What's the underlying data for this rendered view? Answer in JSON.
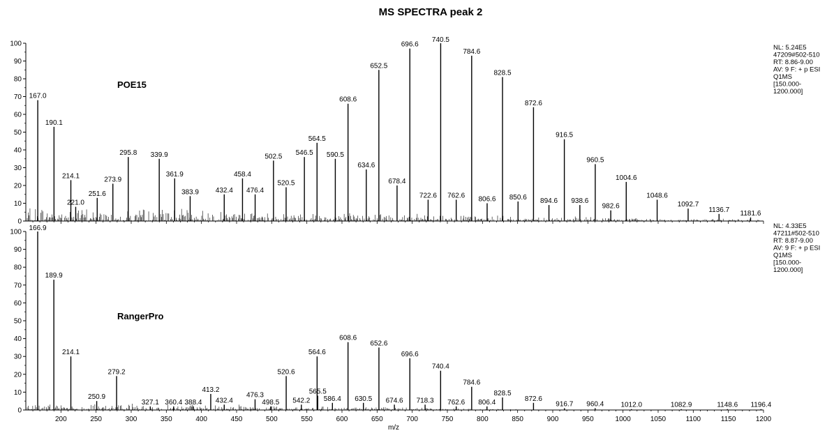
{
  "chart_data": {
    "type": "bar",
    "title": "MS SPECTRA peak 2",
    "xlabel": "m/z",
    "xlim": [
      150,
      1200
    ],
    "ylim": [
      0,
      100
    ],
    "x_ticks": [
      200,
      250,
      300,
      350,
      400,
      450,
      500,
      550,
      600,
      650,
      700,
      750,
      800,
      850,
      900,
      950,
      1000,
      1050,
      1100,
      1150,
      1200
    ],
    "y_ticks": [
      0,
      10,
      20,
      30,
      40,
      50,
      60,
      70,
      80,
      90,
      100
    ],
    "panels": [
      {
        "sample": "POE15",
        "info": [
          "NL: 5.24E5",
          "47209#502-510",
          "RT: 8.86-9.00",
          "AV: 9 F: + p ESI",
          "Q1MS",
          "[150.000-",
          "1200.000]"
        ],
        "peaks": [
          {
            "mz": 167.0,
            "rel": 68,
            "label": "167.0"
          },
          {
            "mz": 190.1,
            "rel": 53,
            "label": "190.1"
          },
          {
            "mz": 214.1,
            "rel": 23,
            "label": "214.1"
          },
          {
            "mz": 221.0,
            "rel": 8,
            "label": "221.0"
          },
          {
            "mz": 251.6,
            "rel": 13,
            "label": "251.6"
          },
          {
            "mz": 273.9,
            "rel": 21,
            "label": "273.9"
          },
          {
            "mz": 295.8,
            "rel": 36,
            "label": "295.8"
          },
          {
            "mz": 339.9,
            "rel": 35,
            "label": "339.9"
          },
          {
            "mz": 361.9,
            "rel": 24,
            "label": "361.9"
          },
          {
            "mz": 383.9,
            "rel": 14,
            "label": "383.9"
          },
          {
            "mz": 432.4,
            "rel": 15,
            "label": "432.4"
          },
          {
            "mz": 458.4,
            "rel": 24,
            "label": "458.4"
          },
          {
            "mz": 476.4,
            "rel": 15,
            "label": "476.4"
          },
          {
            "mz": 502.5,
            "rel": 34,
            "label": "502.5"
          },
          {
            "mz": 520.5,
            "rel": 19,
            "label": "520.5"
          },
          {
            "mz": 546.5,
            "rel": 36,
            "label": "546.5"
          },
          {
            "mz": 564.5,
            "rel": 44,
            "label": "564.5"
          },
          {
            "mz": 590.5,
            "rel": 35,
            "label": "590.5"
          },
          {
            "mz": 608.6,
            "rel": 66,
            "label": "608.6"
          },
          {
            "mz": 634.6,
            "rel": 29,
            "label": "634.6"
          },
          {
            "mz": 652.5,
            "rel": 85,
            "label": "652.5"
          },
          {
            "mz": 678.4,
            "rel": 20,
            "label": "678.4"
          },
          {
            "mz": 696.6,
            "rel": 97,
            "label": "696.6"
          },
          {
            "mz": 722.6,
            "rel": 12,
            "label": "722.6"
          },
          {
            "mz": 740.5,
            "rel": 100,
            "label": "740.5"
          },
          {
            "mz": 762.6,
            "rel": 12,
            "label": "762.6"
          },
          {
            "mz": 784.6,
            "rel": 93,
            "label": "784.6"
          },
          {
            "mz": 806.6,
            "rel": 10,
            "label": "806.6"
          },
          {
            "mz": 828.5,
            "rel": 81,
            "label": "828.5"
          },
          {
            "mz": 850.6,
            "rel": 11,
            "label": "850.6"
          },
          {
            "mz": 872.6,
            "rel": 64,
            "label": "872.6"
          },
          {
            "mz": 894.6,
            "rel": 9,
            "label": "894.6"
          },
          {
            "mz": 916.5,
            "rel": 46,
            "label": "916.5"
          },
          {
            "mz": 938.6,
            "rel": 9,
            "label": "938.6"
          },
          {
            "mz": 960.5,
            "rel": 32,
            "label": "960.5"
          },
          {
            "mz": 982.6,
            "rel": 6,
            "label": "982.6"
          },
          {
            "mz": 1004.6,
            "rel": 22,
            "label": "1004.6"
          },
          {
            "mz": 1048.6,
            "rel": 12,
            "label": "1048.6"
          },
          {
            "mz": 1092.7,
            "rel": 7,
            "label": "1092.7"
          },
          {
            "mz": 1136.7,
            "rel": 4,
            "label": "1136.7"
          },
          {
            "mz": 1181.6,
            "rel": 2,
            "label": "1181.6"
          }
        ]
      },
      {
        "sample": "RangerPro",
        "info": [
          "NL: 4.33E5",
          "47211#502-510",
          "RT: 8.87-9.00",
          "AV: 9 F: + p ESI",
          "Q1MS",
          "[150.000-",
          "1200.000]"
        ],
        "peaks": [
          {
            "mz": 166.9,
            "rel": 100,
            "label": "166.9"
          },
          {
            "mz": 189.9,
            "rel": 73,
            "label": "189.9"
          },
          {
            "mz": 214.1,
            "rel": 30,
            "label": "214.1"
          },
          {
            "mz": 250.9,
            "rel": 5,
            "label": "250.9"
          },
          {
            "mz": 279.2,
            "rel": 19,
            "label": "279.2"
          },
          {
            "mz": 327.1,
            "rel": 2,
            "label": "327.1"
          },
          {
            "mz": 360.4,
            "rel": 2,
            "label": "360.4"
          },
          {
            "mz": 388.4,
            "rel": 2,
            "label": "388.4"
          },
          {
            "mz": 413.2,
            "rel": 9,
            "label": "413.2"
          },
          {
            "mz": 432.4,
            "rel": 3,
            "label": "432.4"
          },
          {
            "mz": 476.3,
            "rel": 6,
            "label": "476.3"
          },
          {
            "mz": 498.5,
            "rel": 2,
            "label": "498.5"
          },
          {
            "mz": 520.6,
            "rel": 19,
            "label": "520.6"
          },
          {
            "mz": 542.2,
            "rel": 3,
            "label": "542.2"
          },
          {
            "mz": 564.6,
            "rel": 30,
            "label": "564.6"
          },
          {
            "mz": 565.5,
            "rel": 8,
            "label": "565.5"
          },
          {
            "mz": 586.4,
            "rel": 4,
            "label": "586.4"
          },
          {
            "mz": 608.6,
            "rel": 38,
            "label": "608.6"
          },
          {
            "mz": 630.5,
            "rel": 4,
            "label": "630.5"
          },
          {
            "mz": 652.6,
            "rel": 35,
            "label": "652.6"
          },
          {
            "mz": 674.6,
            "rel": 3,
            "label": "674.6"
          },
          {
            "mz": 696.6,
            "rel": 29,
            "label": "696.6"
          },
          {
            "mz": 718.3,
            "rel": 3,
            "label": "718.3"
          },
          {
            "mz": 740.4,
            "rel": 22,
            "label": "740.4"
          },
          {
            "mz": 762.6,
            "rel": 2,
            "label": "762.6"
          },
          {
            "mz": 784.6,
            "rel": 13,
            "label": "784.6"
          },
          {
            "mz": 806.4,
            "rel": 2,
            "label": "806.4"
          },
          {
            "mz": 828.5,
            "rel": 7,
            "label": "828.5"
          },
          {
            "mz": 872.6,
            "rel": 4,
            "label": "872.6"
          },
          {
            "mz": 916.7,
            "rel": 1,
            "label": "916.7"
          },
          {
            "mz": 960.4,
            "rel": 1,
            "label": "960.4"
          },
          {
            "mz": 1012.0,
            "rel": 0.5,
            "label": "1012.0"
          },
          {
            "mz": 1082.9,
            "rel": 0.5,
            "label": "1082.9"
          },
          {
            "mz": 1148.6,
            "rel": 0.5,
            "label": "1148.6"
          },
          {
            "mz": 1196.4,
            "rel": 0.5,
            "label": "1196.4"
          }
        ]
      }
    ]
  }
}
